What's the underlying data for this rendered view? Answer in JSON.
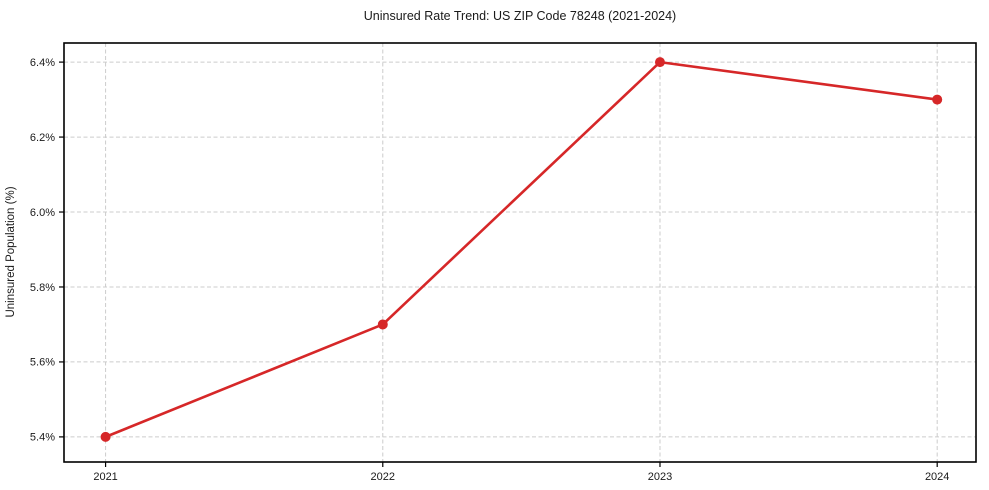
{
  "chart_data": {
    "type": "line",
    "title": "Uninsured Rate Trend: US ZIP Code 78248 (2021-2024)",
    "xlabel": "",
    "ylabel": "Uninsured Population (%)",
    "x": [
      2021,
      2022,
      2023,
      2024
    ],
    "values": [
      5.4,
      5.7,
      6.4,
      6.3
    ],
    "xticks": [
      2021,
      2022,
      2023,
      2024
    ],
    "xtick_labels": [
      "2021",
      "2022",
      "2023",
      "2024"
    ],
    "yticks": [
      5.4,
      5.6,
      5.8,
      6.0,
      6.2,
      6.4
    ],
    "ytick_labels": [
      "5.4%",
      "5.6%",
      "5.8%",
      "6.0%",
      "6.2%",
      "6.4%"
    ],
    "xlim": [
      2020.85,
      2024.14
    ],
    "ylim": [
      5.333,
      6.451
    ],
    "grid": true,
    "grid_style": "dashed",
    "legend": false,
    "line_color": "#d62728",
    "marker": "circle",
    "grid_color": "#cccccc",
    "spine_color": "#000000",
    "text_color": "#1a1a1a",
    "background": "#ffffff"
  }
}
